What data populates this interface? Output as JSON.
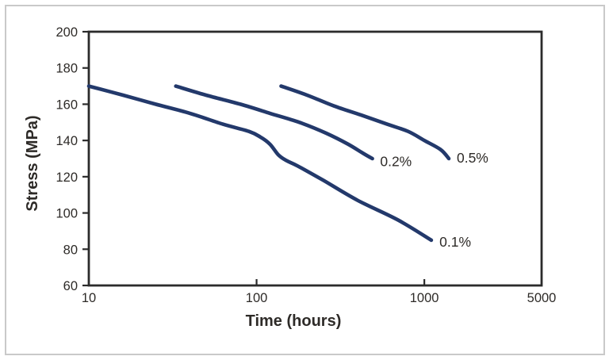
{
  "figure": {
    "background": "#ffffff",
    "frame_border_color": "#c9c9c9"
  },
  "chart_data": {
    "type": "line",
    "title": "",
    "xlabel": "Time (hours)",
    "ylabel": "Stress (MPa)",
    "x_scale": "log",
    "y_scale": "linear",
    "xlim": [
      10,
      5000
    ],
    "ylim": [
      60,
      200
    ],
    "x_ticks": [
      10,
      100,
      1000,
      5000
    ],
    "x_tick_labels": [
      "10",
      "100",
      "1000",
      "5000"
    ],
    "x_inner_tick_marks": [
      100,
      1000
    ],
    "y_ticks": [
      60,
      80,
      100,
      120,
      140,
      160,
      180,
      200
    ],
    "y_tick_labels": [
      "60",
      "80",
      "100",
      "120",
      "140",
      "160",
      "180",
      "200"
    ],
    "grid": false,
    "legend_position": "inline-labels",
    "line_color": "#23396b",
    "axis_color": "#2b2b2b",
    "text_color": "#2e2b28",
    "series": [
      {
        "name": "0.1%",
        "points": [
          [
            10,
            170
          ],
          [
            16,
            165
          ],
          [
            25,
            160
          ],
          [
            40,
            155
          ],
          [
            63,
            149
          ],
          [
            90,
            145
          ],
          [
            105,
            142
          ],
          [
            120,
            138
          ],
          [
            135,
            132
          ],
          [
            150,
            129
          ],
          [
            175,
            126
          ],
          [
            250,
            118
          ],
          [
            400,
            107
          ],
          [
            700,
            96
          ],
          [
            1100,
            85
          ]
        ]
      },
      {
        "name": "0.2%",
        "points": [
          [
            33,
            170
          ],
          [
            50,
            165
          ],
          [
            80,
            160
          ],
          [
            120,
            155
          ],
          [
            180,
            150
          ],
          [
            260,
            144
          ],
          [
            350,
            138
          ],
          [
            430,
            133
          ],
          [
            490,
            130
          ]
        ]
      },
      {
        "name": "0.5%",
        "points": [
          [
            140,
            170
          ],
          [
            200,
            165
          ],
          [
            290,
            159
          ],
          [
            420,
            154
          ],
          [
            600,
            149
          ],
          [
            800,
            145
          ],
          [
            1000,
            140
          ],
          [
            1250,
            135
          ],
          [
            1400,
            130
          ]
        ]
      }
    ],
    "annotations": [
      {
        "text": "0.1%",
        "t": 1230,
        "stress": 84
      },
      {
        "text": "0.2%",
        "t": 545,
        "stress": 128.5
      },
      {
        "text": "0.5%",
        "t": 1560,
        "stress": 130.5
      }
    ]
  }
}
